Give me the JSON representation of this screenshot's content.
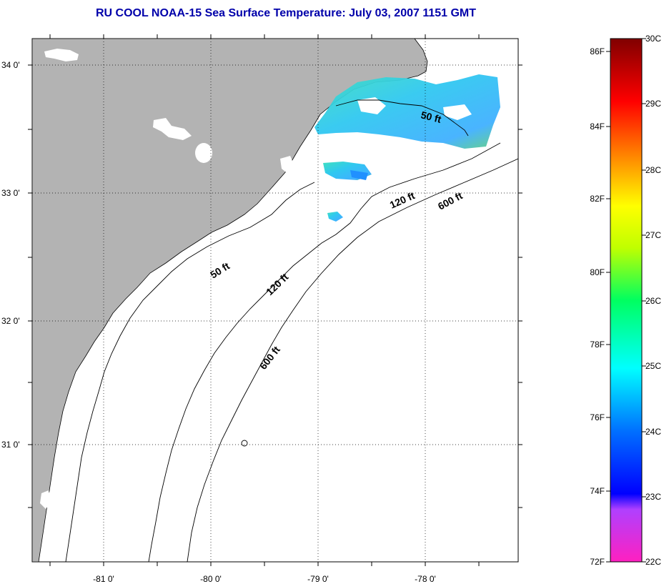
{
  "title": "RU COOL  NOAA-15  Sea Surface Temperature:  July 03, 2007 1151 GMT",
  "map": {
    "lat_labels": [
      "34 0'",
      "33 0'",
      "32 0'",
      "31 0'"
    ],
    "lon_labels": [
      "-81 0'",
      "-80 0'",
      "-79 0'",
      "-78 0'"
    ],
    "contour_labels": [
      "50 ft",
      "120 ft",
      "600 ft",
      "50 ft",
      "120 ft",
      "600 ft"
    ],
    "land_color": "#b3b3b3",
    "coast_color": "#000000"
  },
  "colorbar": {
    "fahrenheit_labels": [
      "86F",
      "84F",
      "82F",
      "80F",
      "78F",
      "76F",
      "74F",
      "72F"
    ],
    "celsius_labels": [
      "30C",
      "29C",
      "28C",
      "27C",
      "26C",
      "25C",
      "24C",
      "23C",
      "22C"
    ],
    "colors": [
      "#800000",
      "#ff0000",
      "#ff8000",
      "#ffff00",
      "#00ff00",
      "#00ffff",
      "#0060ff",
      "#0000ff",
      "#ff00ff"
    ]
  }
}
